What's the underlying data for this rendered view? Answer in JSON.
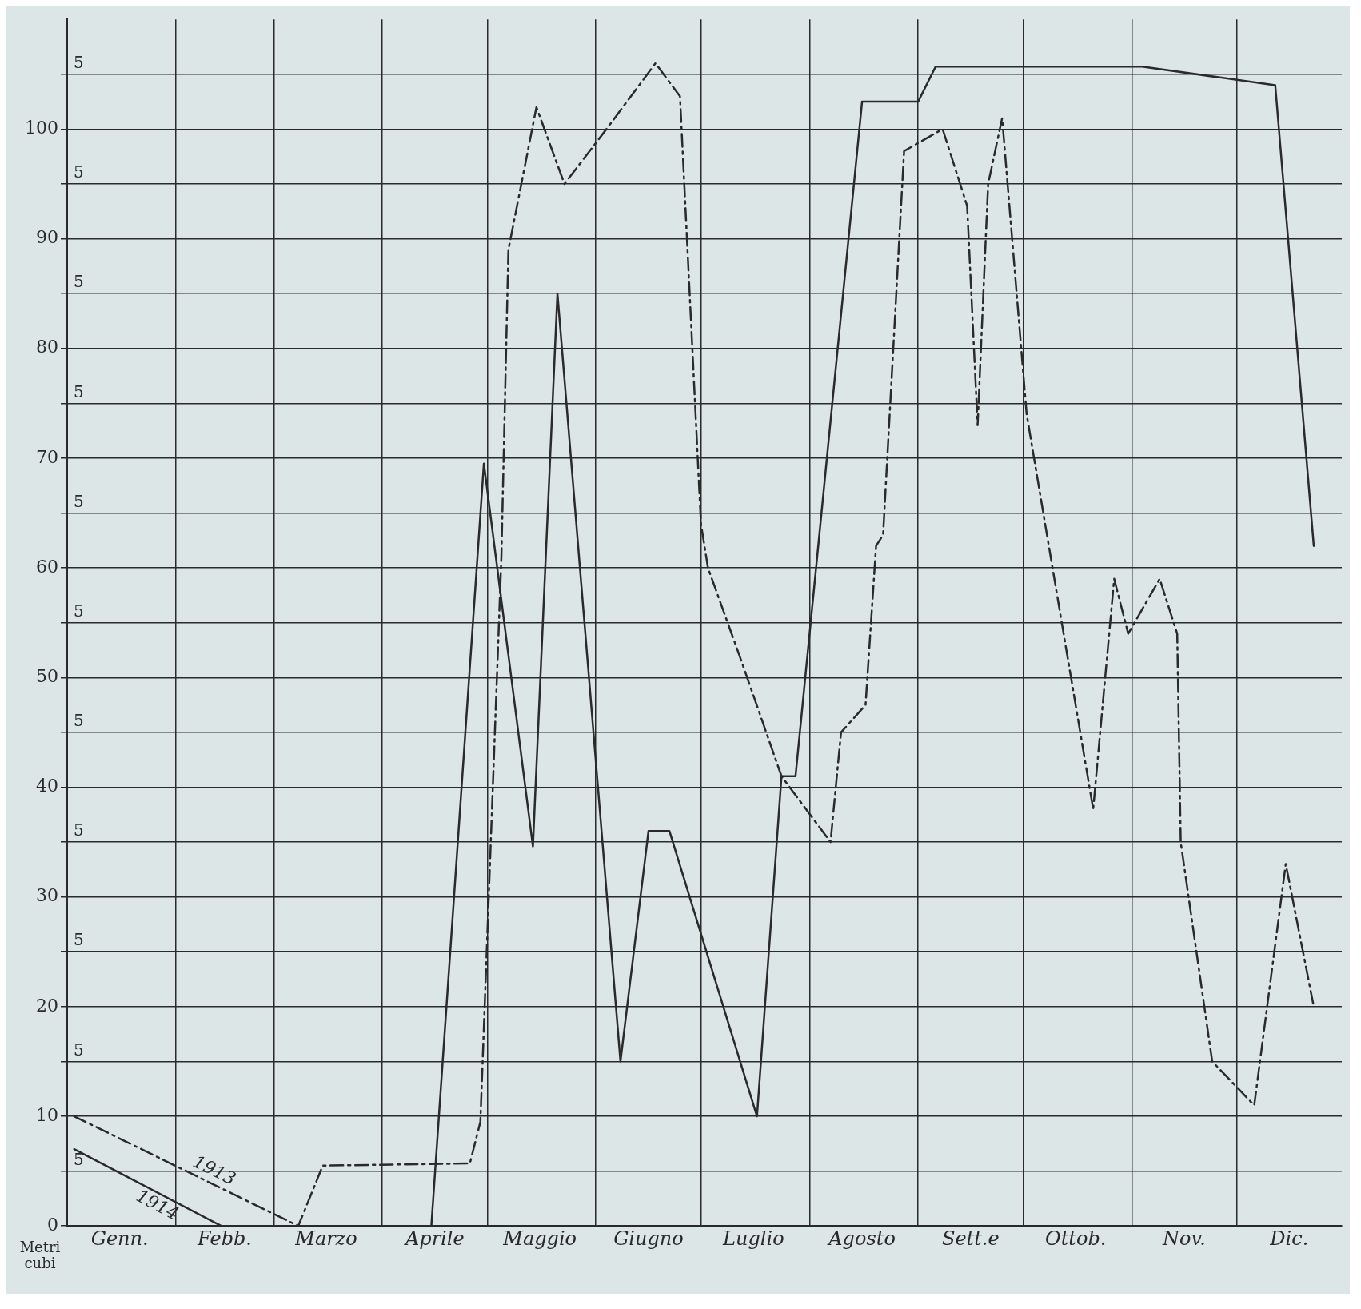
{
  "chart_data": {
    "type": "line",
    "ylabel": "Metri cubi",
    "xlim": [
      "--01-01",
      "--12-31"
    ],
    "xticks": [
      {
        "value": "--01-16",
        "label": "Genn."
      },
      {
        "value": "--02-01",
        "label": null
      },
      {
        "value": "--02-15",
        "label": "Febb."
      },
      {
        "value": "--03-01",
        "label": null
      },
      {
        "value": "--03-16",
        "label": "Marzo"
      },
      {
        "value": "--04-01",
        "label": null
      },
      {
        "value": "--04-16",
        "label": "Aprile"
      },
      {
        "value": "--05-01",
        "label": null
      },
      {
        "value": "--05-16",
        "label": "Maggio"
      },
      {
        "value": "--06-01",
        "label": null
      },
      {
        "value": "--06-16",
        "label": "Giugno"
      },
      {
        "value": "--07-01",
        "label": null
      },
      {
        "value": "--07-16",
        "label": "Luglio"
      },
      {
        "value": "--08-01",
        "label": null
      },
      {
        "value": "--08-16",
        "label": "Agosto"
      },
      {
        "value": "--09-01",
        "label": null
      },
      {
        "value": "--09-16",
        "label": "Sett.e"
      },
      {
        "value": "--10-01",
        "label": null
      },
      {
        "value": "--10-16",
        "label": "Ottob."
      },
      {
        "value": "--11-01",
        "label": null
      },
      {
        "value": "--11-16",
        "label": "Nov."
      },
      {
        "value": "--12-01",
        "label": null
      },
      {
        "value": "--12-16",
        "label": "Dic."
      }
    ],
    "ylim": [
      0,
      110
    ],
    "yticks": [
      0,
      {
        "value": 5,
        "label": null
      },
      10,
      {
        "value": 15,
        "label": null
      },
      20,
      {
        "value": 25,
        "label": null
      },
      30,
      {
        "value": 35,
        "label": null
      },
      40,
      {
        "value": 45,
        "label": null
      },
      50,
      {
        "value": 55,
        "label": null
      },
      60,
      {
        "value": 65,
        "label": null
      },
      70,
      {
        "value": 75,
        "label": null
      },
      80,
      {
        "value": 85,
        "label": null
      },
      90,
      {
        "value": 95,
        "label": null
      },
      100,
      {
        "value": 105,
        "label": null
      }
    ],
    "annotations": [
      "5",
      "5",
      "5",
      "5",
      "5",
      "5",
      "5",
      "5",
      "5",
      "5",
      "5"
    ],
    "grid": true,
    "legend": false,
    "marker": "none",
    "series": [
      {
        "name": "1913",
        "color": "#2a2a2a",
        "line_style": "dashed",
        "x": [
          "--01-03",
          "--03-08",
          "--03-15",
          "--04-26",
          "--04-29",
          "--05-05",
          "--05-07",
          "--05-15",
          "--05-23",
          "--06-04",
          "--06-18",
          "--06-25",
          "--07-01",
          "--07-03",
          "--07-12",
          "--07-24",
          "--08-07",
          "--08-10",
          "--08-17",
          "--08-20",
          "--08-22",
          "--08-28",
          "--09-08",
          "--09-15",
          "--09-18",
          "--09-21",
          "--09-25",
          "--10-02",
          "--10-21",
          "--10-27",
          "--10-31",
          "--11-09",
          "--11-14",
          "--11-15",
          "--11-24",
          "--12-06",
          "--12-15",
          "--12-23"
        ],
        "values": [
          10,
          0,
          5.5,
          5.7,
          9.5,
          61,
          89,
          102,
          95,
          100,
          106,
          103,
          64,
          60,
          52,
          41,
          35,
          45,
          47.5,
          62,
          63,
          98,
          100,
          93,
          73,
          95,
          101,
          74,
          38,
          59,
          54,
          59,
          54,
          35,
          15,
          11,
          33,
          20
        ]
      },
      {
        "name": "1914",
        "color": "#2a2a2a",
        "line_style": "solid",
        "x": [
          "--01-03",
          "--02-14",
          "--04-15",
          "--04-30",
          "--05-14",
          "--05-21",
          "--06-08",
          "--06-16",
          "--06-22",
          "--07-17",
          "--07-24",
          "--07-28",
          "--08-16",
          "--09-01",
          "--09-06",
          "--11-04",
          "--12-12",
          "--12-23"
        ],
        "values": [
          7,
          0,
          0,
          69.5,
          34.6,
          85,
          15,
          36,
          36,
          10,
          41,
          41,
          102.5,
          102.5,
          105.7,
          105.7,
          104,
          62
        ]
      }
    ]
  }
}
